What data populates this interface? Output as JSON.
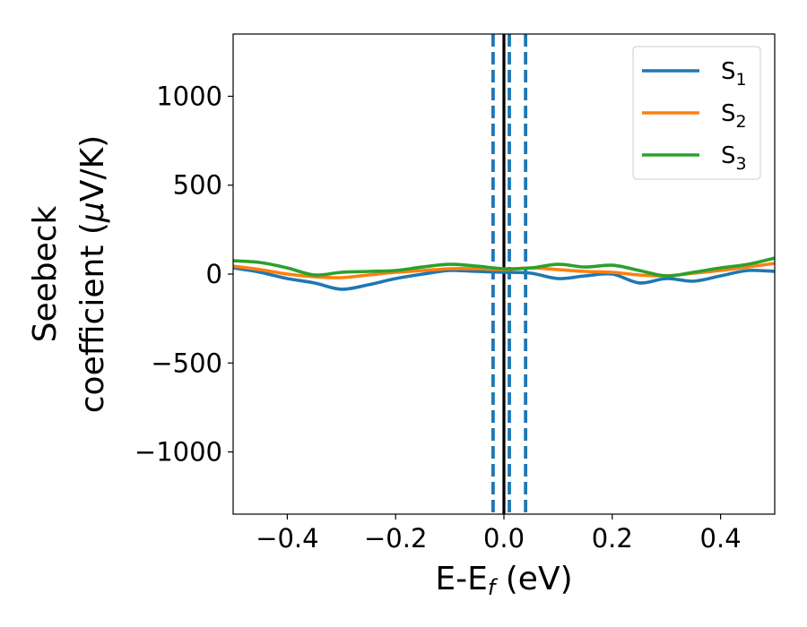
{
  "chart_data": {
    "type": "line",
    "xlabel_main": "E-E",
    "xlabel_sub": "f",
    "xlabel_unit": " (eV)",
    "ylabel_line1": "Seebeck",
    "ylabel_line2_text": "coefficient  (",
    "ylabel_mu": "μ",
    "ylabel_line2_unit": "V/K)",
    "xlim": [
      -0.5,
      0.5
    ],
    "ylim": [
      -1350,
      1350
    ],
    "xticks": [
      -0.4,
      -0.2,
      0.0,
      0.2,
      0.4
    ],
    "xtick_labels": [
      "−0.4",
      "−0.2",
      "0.0",
      "0.2",
      "0.4"
    ],
    "yticks": [
      -1000,
      -500,
      0,
      500,
      1000
    ],
    "ytick_labels": [
      "−1000",
      "−500",
      "0",
      "500",
      "1000"
    ],
    "grid": false,
    "legend_position": "top-right",
    "vlines": [
      {
        "x": 0.0,
        "style": "solid",
        "color": "#000000"
      },
      {
        "x": -0.02,
        "style": "dashed",
        "color": "#1f77b4"
      },
      {
        "x": 0.01,
        "style": "dashed",
        "color": "#1f77b4"
      },
      {
        "x": 0.04,
        "style": "dashed",
        "color": "#1f77b4"
      }
    ],
    "series": [
      {
        "name": "S",
        "subscript": "1",
        "color": "#1f77b4",
        "x": [
          -0.5,
          -0.45,
          -0.4,
          -0.35,
          -0.3,
          -0.25,
          -0.2,
          -0.15,
          -0.1,
          -0.05,
          0.0,
          0.05,
          0.1,
          0.15,
          0.2,
          0.25,
          0.3,
          0.35,
          0.4,
          0.45,
          0.5
        ],
        "y": [
          35,
          10,
          -25,
          -50,
          -85,
          -60,
          -25,
          0,
          20,
          15,
          10,
          5,
          -25,
          -10,
          0,
          -50,
          -25,
          -40,
          -10,
          20,
          15
        ]
      },
      {
        "name": "S",
        "subscript": "2",
        "color": "#ff7f0e",
        "x": [
          -0.5,
          -0.45,
          -0.4,
          -0.35,
          -0.3,
          -0.25,
          -0.2,
          -0.15,
          -0.1,
          -0.05,
          0.0,
          0.05,
          0.1,
          0.15,
          0.2,
          0.25,
          0.3,
          0.35,
          0.4,
          0.45,
          0.5
        ],
        "y": [
          45,
          25,
          0,
          -15,
          -20,
          -5,
          10,
          20,
          30,
          30,
          25,
          35,
          25,
          15,
          10,
          -5,
          -10,
          5,
          20,
          40,
          60
        ]
      },
      {
        "name": "S",
        "subscript": "3",
        "color": "#2ca02c",
        "x": [
          -0.5,
          -0.45,
          -0.4,
          -0.35,
          -0.3,
          -0.25,
          -0.2,
          -0.15,
          -0.1,
          -0.05,
          0.0,
          0.05,
          0.1,
          0.15,
          0.2,
          0.25,
          0.3,
          0.35,
          0.4,
          0.45,
          0.5
        ],
        "y": [
          75,
          65,
          35,
          -5,
          10,
          15,
          20,
          40,
          55,
          45,
          30,
          35,
          55,
          40,
          50,
          20,
          -10,
          10,
          35,
          55,
          90
        ]
      }
    ]
  }
}
